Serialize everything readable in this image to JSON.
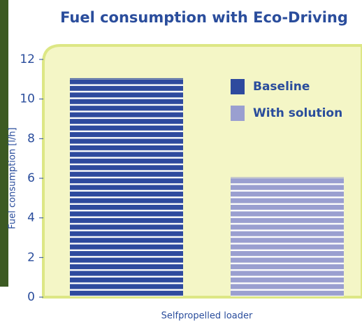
{
  "chart_data": {
    "type": "bar",
    "title": "Fuel consumption with Eco-Driving",
    "ylabel": "Fuel consumption [l/h]",
    "categories": [
      "Selfpropelled loader"
    ],
    "series": [
      {
        "name": "Baseline",
        "color": "#2e4a9e",
        "values": [
          11
        ]
      },
      {
        "name": "With solution",
        "color": "#9a9fd0",
        "values": [
          6
        ]
      }
    ],
    "ylim": [
      0,
      12
    ],
    "yticks": [
      0,
      2,
      4,
      6,
      8,
      10,
      12
    ]
  }
}
